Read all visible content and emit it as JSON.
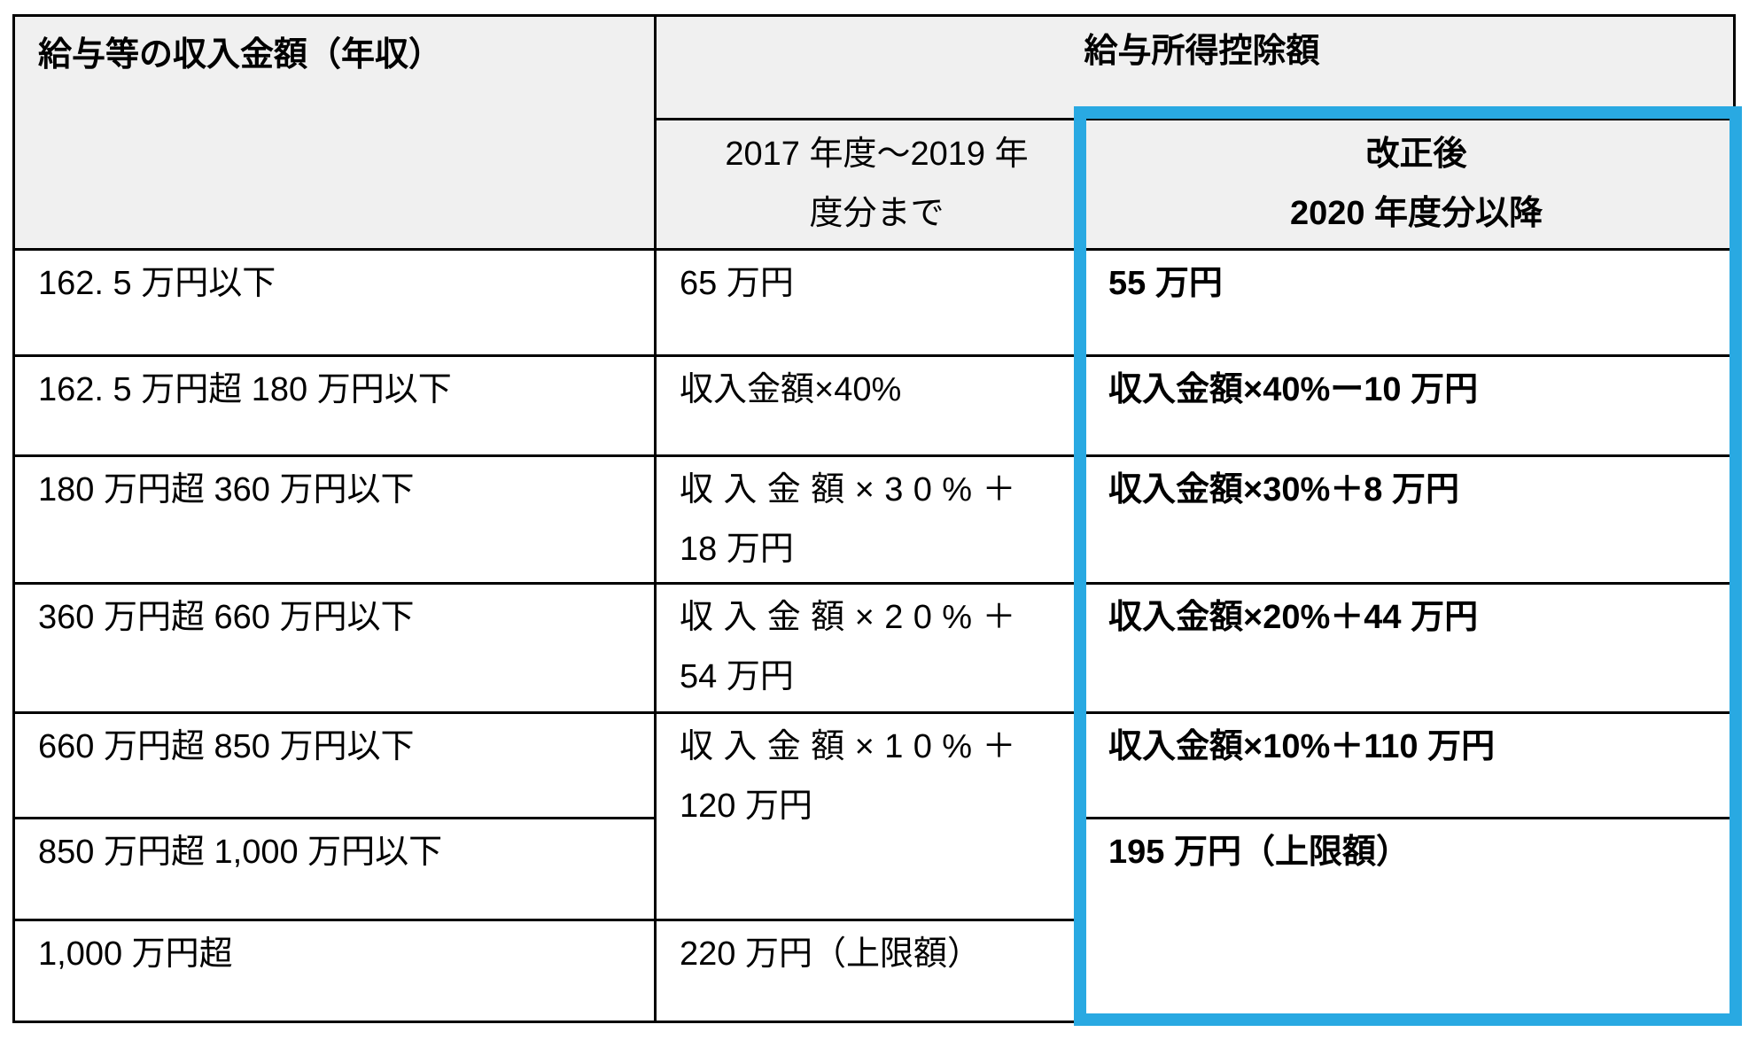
{
  "table": {
    "header": {
      "income_label": "給与等の収入金額（年収）",
      "deduction_label": "給与所得控除額",
      "period_old": "2017 年度～2019 年\n度分まで",
      "period_new": "改正後\n2020 年度分以降"
    },
    "rows": [
      {
        "income": "162. 5 万円以下",
        "old": "65 万円",
        "new": "55 万円"
      },
      {
        "income": "162. 5 万円超 180 万円以下",
        "old": "収入金額×40%",
        "new": "収入金額×40%ー10 万円"
      },
      {
        "income": "180 万円超 360 万円以下",
        "old": "収入金額×30%＋\n18 万円",
        "new": "収入金額×30%＋8 万円"
      },
      {
        "income": "360 万円超 660 万円以下",
        "old": "収入金額×20%＋\n54 万円",
        "new": "収入金額×20%＋44 万円"
      },
      {
        "income": "660 万円超 850 万円以下",
        "old": "収入金額×10%＋\n120 万円",
        "new": "収入金額×10%＋110 万円"
      },
      {
        "income": "850 万円超 1,000 万円以下",
        "new": "195 万円（上限額）"
      },
      {
        "income": "1,000 万円超",
        "old": "220 万円（上限額）"
      }
    ],
    "highlight_color": "#29A9E2"
  }
}
